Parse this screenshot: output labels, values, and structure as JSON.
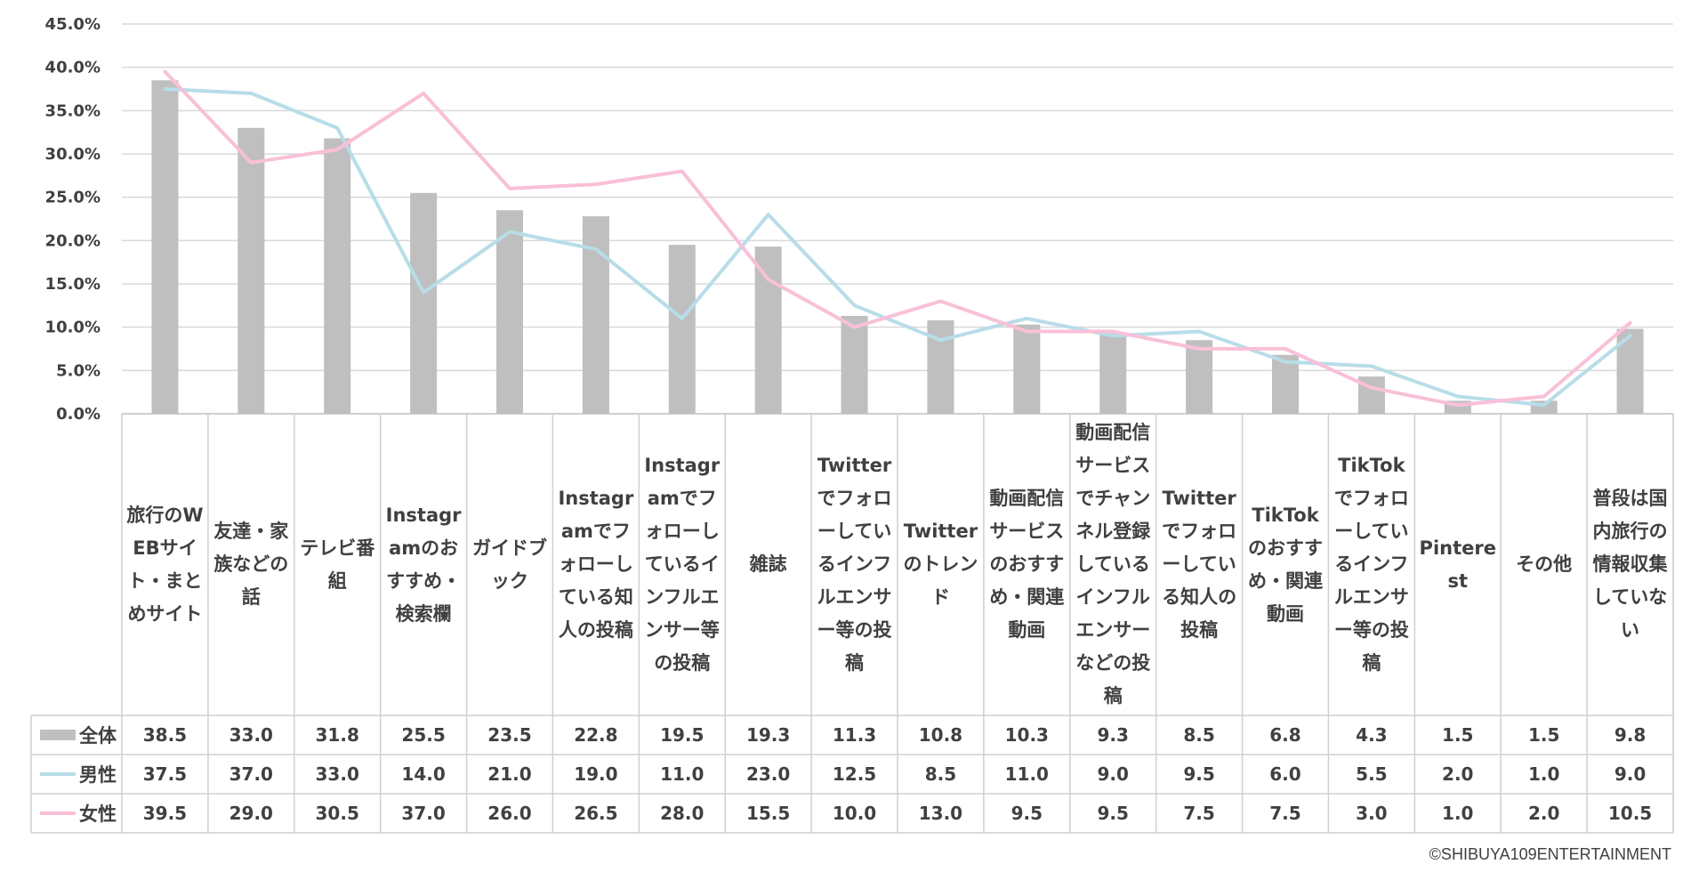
{
  "chart_data": {
    "type": "bar",
    "y_axis": {
      "min": 0,
      "max": 45,
      "step": 5,
      "format": "percent_1dp"
    },
    "categories": [
      "旅行のWEBサイト・まとめサイト",
      "友達・家族などの話",
      "テレビ番組",
      "Instagramのおすすめ・検索欄",
      "ガイドブック",
      "Instagramでフォローしている知人の投稿",
      "Instagramでフォローしているインフルエンサー等の投稿",
      "雑誌",
      "Twitterでフォローしているインフルエンサー等の投稿",
      "Twitterのトレンド",
      "動画配信サービスのおすすめ・関連動画",
      "動画配信サービスでチャンネル登録しているインフルエンサーなどの投稿",
      "Twitterでフォローしている知人の投稿",
      "TikTokのおすすめ・関連動画",
      "TikTokでフォローしているインフルエンサー等の投稿",
      "Pinterest",
      "その他",
      "普段は国内旅行の情報収集していない"
    ],
    "series": [
      {
        "name": "全体",
        "type": "bar",
        "color": "#bfbfbf",
        "values": [
          "38.5",
          "33.0",
          "31.8",
          "25.5",
          "23.5",
          "22.8",
          "19.5",
          "19.3",
          "11.3",
          "10.8",
          "10.3",
          "9.3",
          "8.5",
          "6.8",
          "4.3",
          "1.5",
          "1.5",
          "9.8"
        ]
      },
      {
        "name": "男性",
        "type": "line",
        "color": "#b7dde8",
        "values": [
          "37.5",
          "37.0",
          "33.0",
          "14.0",
          "21.0",
          "19.0",
          "11.0",
          "23.0",
          "12.5",
          "8.5",
          "11.0",
          "9.0",
          "9.5",
          "6.0",
          "5.5",
          "2.0",
          "1.0",
          "9.0"
        ]
      },
      {
        "name": "女性",
        "type": "line",
        "color": "#f9c0d8",
        "values": [
          "39.5",
          "29.0",
          "30.5",
          "37.0",
          "26.0",
          "26.5",
          "28.0",
          "15.5",
          "10.0",
          "13.0",
          "9.5",
          "9.5",
          "7.5",
          "7.5",
          "3.0",
          "1.0",
          "2.0",
          "10.5"
        ]
      }
    ],
    "legend": "data-table",
    "grid": true
  },
  "copyright": "©SHIBUYA109ENTERTAINMENT"
}
